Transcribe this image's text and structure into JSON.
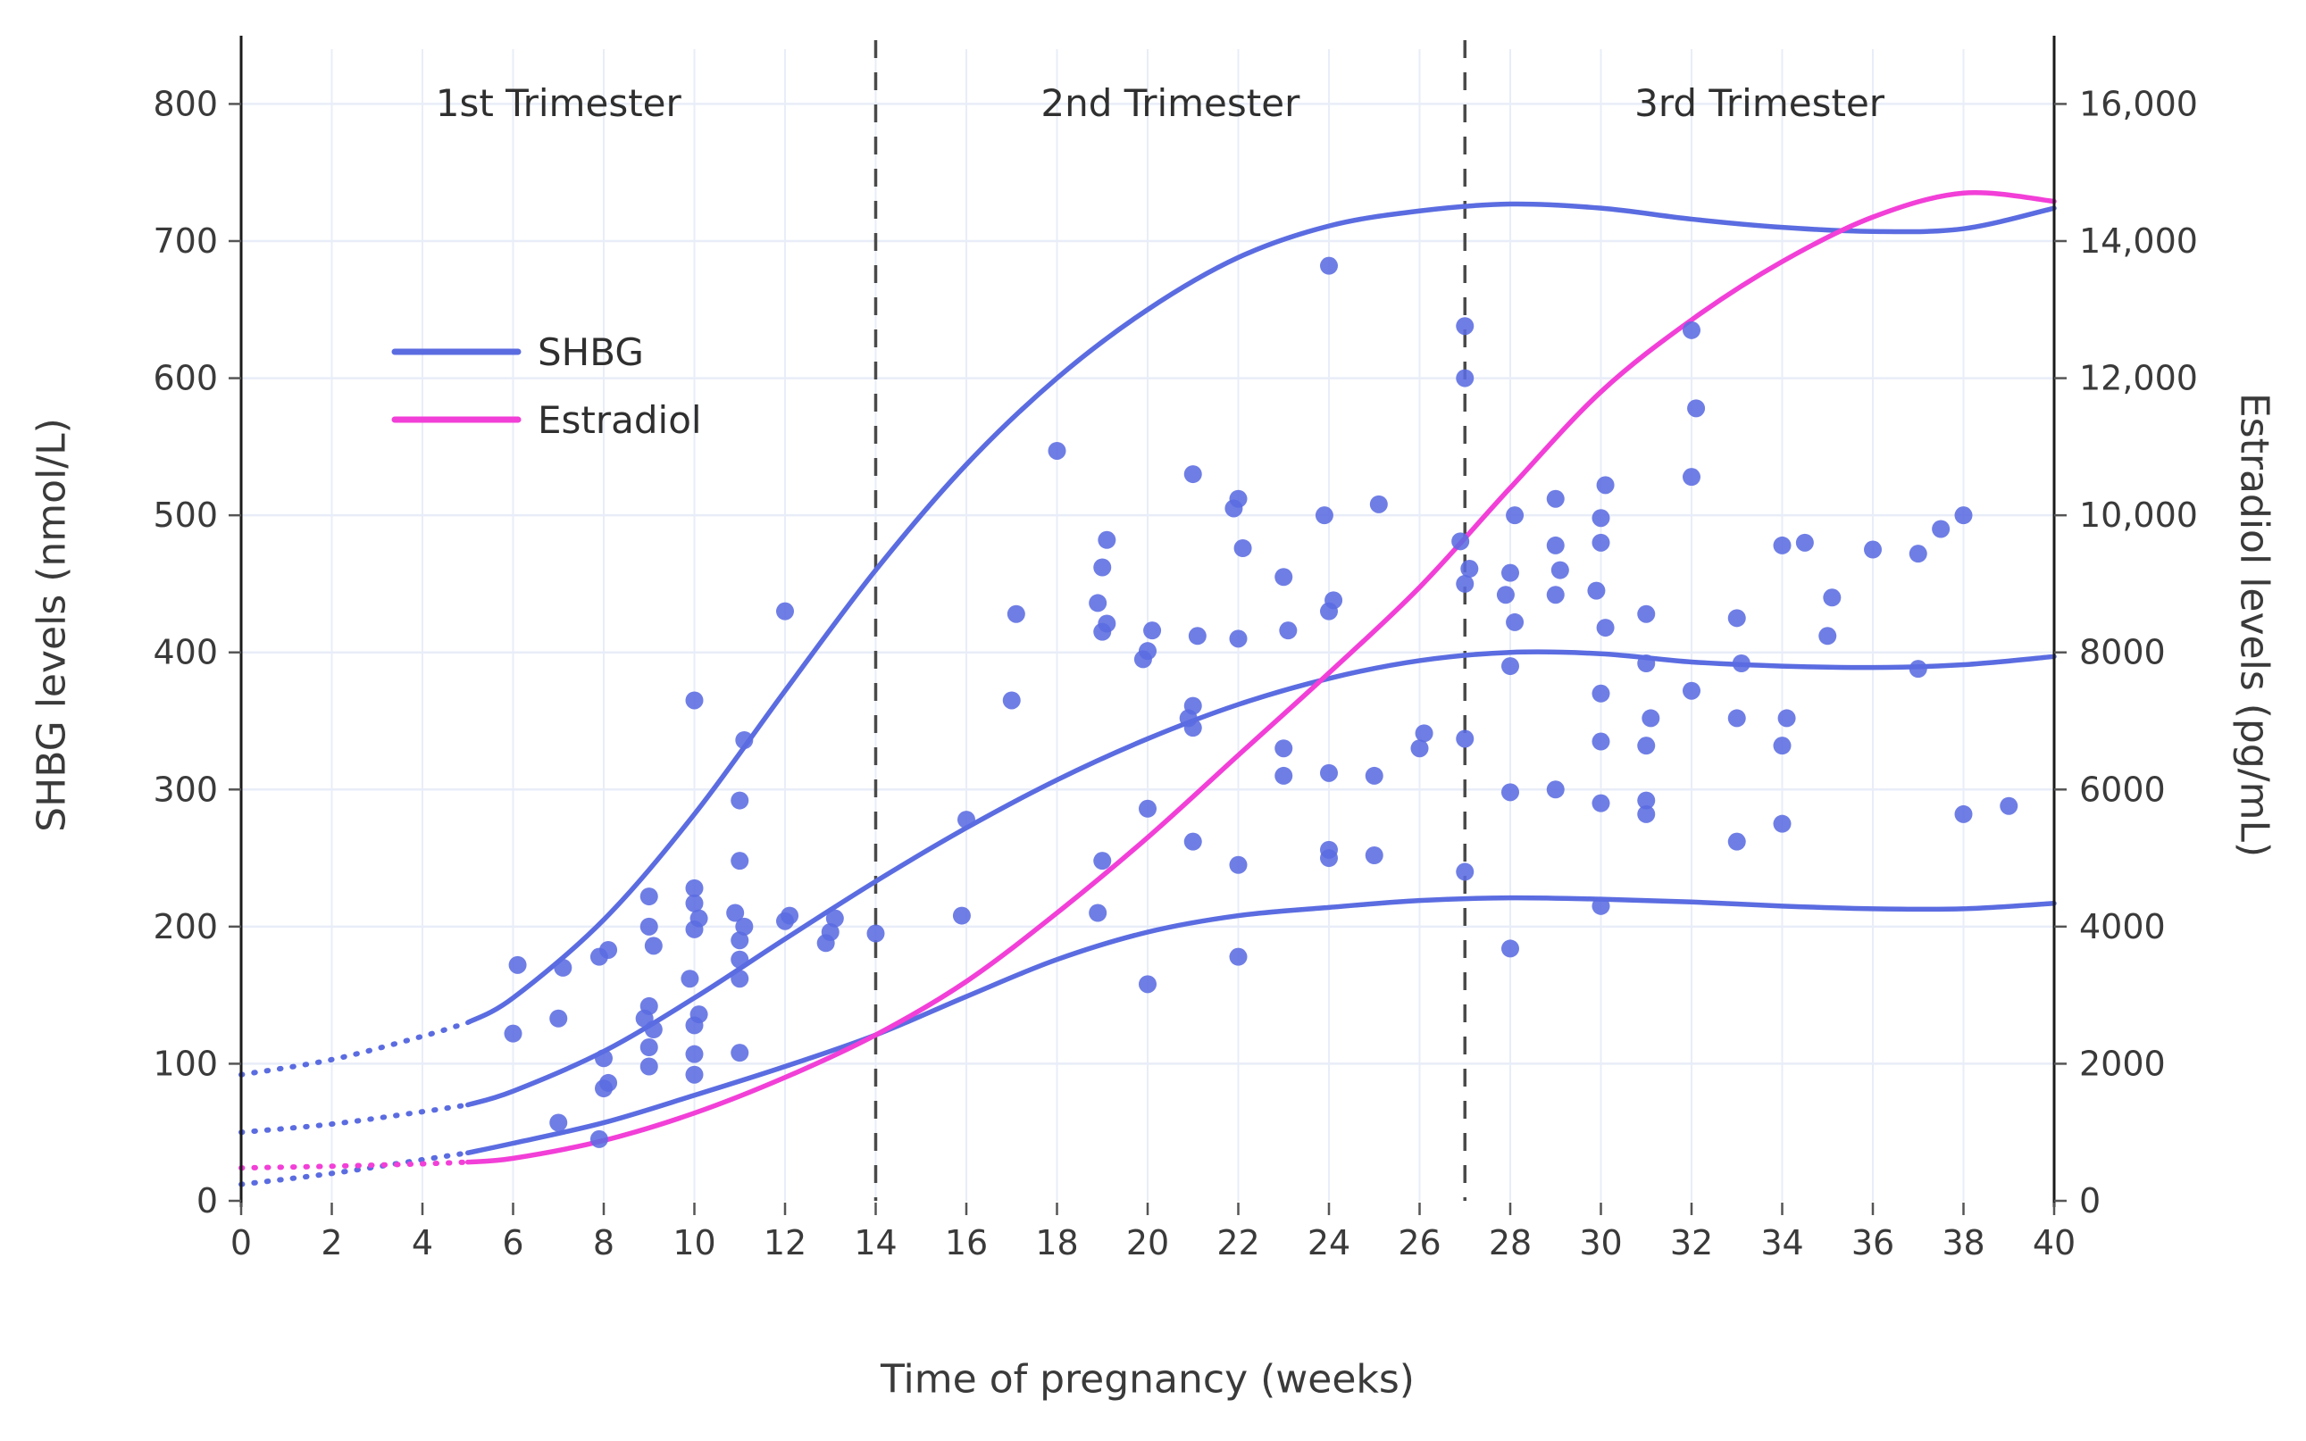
{
  "chart_data": {
    "type": "scatter",
    "title": "",
    "xlabel": "Time of pregnancy (weeks)",
    "ylabel_left": "SHBG levels (nmol/L)",
    "ylabel_right": "Estradiol levels (pg/mL)",
    "xlim": [
      0,
      40
    ],
    "ylim_left": [
      0,
      840
    ],
    "ylim_right": [
      0,
      16800
    ],
    "grid": true,
    "colors": {
      "shbg": "#5b6ce1",
      "estradiol": "#f23fd7",
      "grid": "#e8edf8",
      "axis": "#1a1a1a",
      "divider": "#4a4a4a",
      "text": "#3a3a3a"
    },
    "x_ticks": [
      0,
      2,
      4,
      6,
      8,
      10,
      12,
      14,
      16,
      18,
      20,
      22,
      24,
      26,
      28,
      30,
      32,
      34,
      36,
      38,
      40
    ],
    "y_ticks_left": [
      {
        "v": 0,
        "label": "0"
      },
      {
        "v": 100,
        "label": "100"
      },
      {
        "v": 200,
        "label": "200"
      },
      {
        "v": 300,
        "label": "300"
      },
      {
        "v": 400,
        "label": "400"
      },
      {
        "v": 500,
        "label": "500"
      },
      {
        "v": 600,
        "label": "600"
      },
      {
        "v": 700,
        "label": "700"
      },
      {
        "v": 800,
        "label": "800"
      }
    ],
    "y_ticks_right": [
      {
        "v": 0,
        "label": "0"
      },
      {
        "v": 2000,
        "label": "2000"
      },
      {
        "v": 4000,
        "label": "4000"
      },
      {
        "v": 6000,
        "label": "6000"
      },
      {
        "v": 8000,
        "label": "8000"
      },
      {
        "v": 10000,
        "label": "10,000"
      },
      {
        "v": 12000,
        "label": "12,000"
      },
      {
        "v": 14000,
        "label": "14,000"
      },
      {
        "v": 16000,
        "label": "16,000"
      }
    ],
    "trimester_dividers": [
      14,
      27
    ],
    "annotations": [
      {
        "label": "1st Trimester",
        "center_week": 7
      },
      {
        "label": "2nd Trimester",
        "center_week": 20.5
      },
      {
        "label": "3rd Trimester",
        "center_week": 33.5
      }
    ],
    "legend": [
      {
        "label": "SHBG",
        "color": "#5b6ce1"
      },
      {
        "label": "Estradiol",
        "color": "#f23fd7"
      }
    ],
    "series": [
      {
        "name": "shbg-upper-curve",
        "type": "line",
        "axis": "left",
        "color": "#5b6ce1",
        "dotted_until_week": 5,
        "points": [
          [
            0,
            92
          ],
          [
            2,
            103
          ],
          [
            4,
            120
          ],
          [
            5,
            130
          ],
          [
            6,
            148
          ],
          [
            8,
            205
          ],
          [
            10,
            282
          ],
          [
            12,
            372
          ],
          [
            14,
            460
          ],
          [
            16,
            537
          ],
          [
            18,
            600
          ],
          [
            20,
            650
          ],
          [
            22,
            688
          ],
          [
            24,
            711
          ],
          [
            26,
            722
          ],
          [
            28,
            727
          ],
          [
            30,
            724
          ],
          [
            32,
            716
          ],
          [
            34,
            710
          ],
          [
            36,
            707
          ],
          [
            38,
            709
          ],
          [
            40,
            724
          ]
        ]
      },
      {
        "name": "shbg-median-curve",
        "type": "line",
        "axis": "left",
        "color": "#5b6ce1",
        "dotted_until_week": 5,
        "points": [
          [
            0,
            50
          ],
          [
            2,
            56
          ],
          [
            4,
            65
          ],
          [
            5,
            70
          ],
          [
            6,
            80
          ],
          [
            8,
            109
          ],
          [
            10,
            148
          ],
          [
            12,
            191
          ],
          [
            14,
            233
          ],
          [
            16,
            272
          ],
          [
            18,
            307
          ],
          [
            20,
            337
          ],
          [
            22,
            362
          ],
          [
            24,
            381
          ],
          [
            26,
            394
          ],
          [
            28,
            400
          ],
          [
            30,
            399
          ],
          [
            32,
            393
          ],
          [
            34,
            390
          ],
          [
            36,
            389
          ],
          [
            38,
            391
          ],
          [
            40,
            397
          ]
        ]
      },
      {
        "name": "shbg-lower-curve",
        "type": "line",
        "axis": "left",
        "color": "#5b6ce1",
        "dotted_until_week": 5,
        "points": [
          [
            0,
            12
          ],
          [
            2,
            20
          ],
          [
            4,
            30
          ],
          [
            5,
            35
          ],
          [
            6,
            42
          ],
          [
            8,
            57
          ],
          [
            10,
            77
          ],
          [
            12,
            98
          ],
          [
            14,
            121
          ],
          [
            16,
            149
          ],
          [
            18,
            176
          ],
          [
            20,
            196
          ],
          [
            22,
            208
          ],
          [
            24,
            214
          ],
          [
            26,
            219
          ],
          [
            28,
            221
          ],
          [
            30,
            220
          ],
          [
            32,
            218
          ],
          [
            34,
            215
          ],
          [
            36,
            213
          ],
          [
            38,
            213
          ],
          [
            40,
            217
          ]
        ]
      },
      {
        "name": "estradiol-curve",
        "type": "line",
        "axis": "right",
        "color": "#f23fd7",
        "dotted_until_week": 5,
        "points": [
          [
            0,
            480
          ],
          [
            2,
            505
          ],
          [
            4,
            540
          ],
          [
            5,
            565
          ],
          [
            6,
            620
          ],
          [
            8,
            880
          ],
          [
            10,
            1280
          ],
          [
            12,
            1800
          ],
          [
            14,
            2420
          ],
          [
            16,
            3200
          ],
          [
            18,
            4200
          ],
          [
            20,
            5300
          ],
          [
            22,
            6500
          ],
          [
            24,
            7700
          ],
          [
            26,
            8950
          ],
          [
            28,
            10400
          ],
          [
            30,
            11800
          ],
          [
            32,
            12850
          ],
          [
            34,
            13700
          ],
          [
            36,
            14350
          ],
          [
            38,
            14700
          ],
          [
            40,
            14580
          ]
        ]
      },
      {
        "name": "shbg-observations",
        "type": "scatter",
        "axis": "left",
        "color": "#5b6ce1",
        "points": [
          [
            6,
            122
          ],
          [
            6.1,
            172
          ],
          [
            7,
            57
          ],
          [
            7,
            133
          ],
          [
            7.1,
            170
          ],
          [
            7.9,
            45
          ],
          [
            8,
            82
          ],
          [
            8.1,
            86
          ],
          [
            8,
            104
          ],
          [
            7.9,
            178
          ],
          [
            8.1,
            183
          ],
          [
            9,
            98
          ],
          [
            9,
            112
          ],
          [
            9.1,
            125
          ],
          [
            8.9,
            133
          ],
          [
            9,
            142
          ],
          [
            9.1,
            186
          ],
          [
            9,
            200
          ],
          [
            9,
            222
          ],
          [
            10,
            92
          ],
          [
            10,
            107
          ],
          [
            10,
            128
          ],
          [
            10.1,
            136
          ],
          [
            9.9,
            162
          ],
          [
            10,
            198
          ],
          [
            10.1,
            206
          ],
          [
            10,
            217
          ],
          [
            10,
            228
          ],
          [
            10,
            365
          ],
          [
            11,
            108
          ],
          [
            11,
            162
          ],
          [
            11,
            176
          ],
          [
            11,
            190
          ],
          [
            11.1,
            200
          ],
          [
            10.9,
            210
          ],
          [
            11,
            248
          ],
          [
            11,
            292
          ],
          [
            11.1,
            336
          ],
          [
            12,
            204
          ],
          [
            12.1,
            208
          ],
          [
            12,
            430
          ],
          [
            12.9,
            188
          ],
          [
            13,
            196
          ],
          [
            13.1,
            206
          ],
          [
            14,
            195
          ],
          [
            15.9,
            208
          ],
          [
            16,
            278
          ],
          [
            17,
            365
          ],
          [
            17.1,
            428
          ],
          [
            18,
            547
          ],
          [
            18.9,
            210
          ],
          [
            19,
            248
          ],
          [
            19,
            415
          ],
          [
            19.1,
            421
          ],
          [
            18.9,
            436
          ],
          [
            19,
            462
          ],
          [
            19.1,
            482
          ],
          [
            20,
            158
          ],
          [
            20,
            286
          ],
          [
            19.9,
            395
          ],
          [
            20,
            401
          ],
          [
            20.1,
            416
          ],
          [
            21,
            262
          ],
          [
            21,
            345
          ],
          [
            20.9,
            352
          ],
          [
            21,
            361
          ],
          [
            21.1,
            412
          ],
          [
            21,
            530
          ],
          [
            22,
            178
          ],
          [
            22,
            245
          ],
          [
            22,
            410
          ],
          [
            22.1,
            476
          ],
          [
            21.9,
            505
          ],
          [
            22,
            512
          ],
          [
            23,
            310
          ],
          [
            23,
            330
          ],
          [
            23.1,
            416
          ],
          [
            23,
            455
          ],
          [
            24,
            250
          ],
          [
            24,
            256
          ],
          [
            24,
            312
          ],
          [
            24,
            430
          ],
          [
            24.1,
            438
          ],
          [
            23.9,
            500
          ],
          [
            24,
            682
          ],
          [
            25,
            252
          ],
          [
            25,
            310
          ],
          [
            25.1,
            508
          ],
          [
            26,
            330
          ],
          [
            26.1,
            341
          ],
          [
            27,
            240
          ],
          [
            27,
            337
          ],
          [
            27,
            450
          ],
          [
            27.1,
            461
          ],
          [
            26.9,
            481
          ],
          [
            27,
            600
          ],
          [
            27,
            638
          ],
          [
            28,
            184
          ],
          [
            28,
            298
          ],
          [
            28,
            390
          ],
          [
            28.1,
            422
          ],
          [
            27.9,
            442
          ],
          [
            28,
            458
          ],
          [
            28.1,
            500
          ],
          [
            29,
            300
          ],
          [
            29,
            442
          ],
          [
            29.1,
            460
          ],
          [
            29,
            478
          ],
          [
            29,
            512
          ],
          [
            30,
            215
          ],
          [
            30,
            290
          ],
          [
            30,
            335
          ],
          [
            30,
            370
          ],
          [
            30.1,
            418
          ],
          [
            29.9,
            445
          ],
          [
            30,
            480
          ],
          [
            30,
            498
          ],
          [
            30.1,
            522
          ],
          [
            31,
            282
          ],
          [
            31,
            292
          ],
          [
            31,
            332
          ],
          [
            31.1,
            352
          ],
          [
            31,
            392
          ],
          [
            31,
            428
          ],
          [
            32,
            372
          ],
          [
            32,
            528
          ],
          [
            32.1,
            578
          ],
          [
            32,
            635
          ],
          [
            33,
            262
          ],
          [
            33,
            352
          ],
          [
            33.1,
            392
          ],
          [
            33,
            425
          ],
          [
            34,
            275
          ],
          [
            34,
            332
          ],
          [
            34.1,
            352
          ],
          [
            34,
            478
          ],
          [
            34.5,
            480
          ],
          [
            35,
            412
          ],
          [
            35.1,
            440
          ],
          [
            36,
            475
          ],
          [
            37,
            388
          ],
          [
            37,
            472
          ],
          [
            37.5,
            490
          ],
          [
            38,
            282
          ],
          [
            38,
            500
          ],
          [
            39,
            288
          ]
        ]
      }
    ]
  }
}
